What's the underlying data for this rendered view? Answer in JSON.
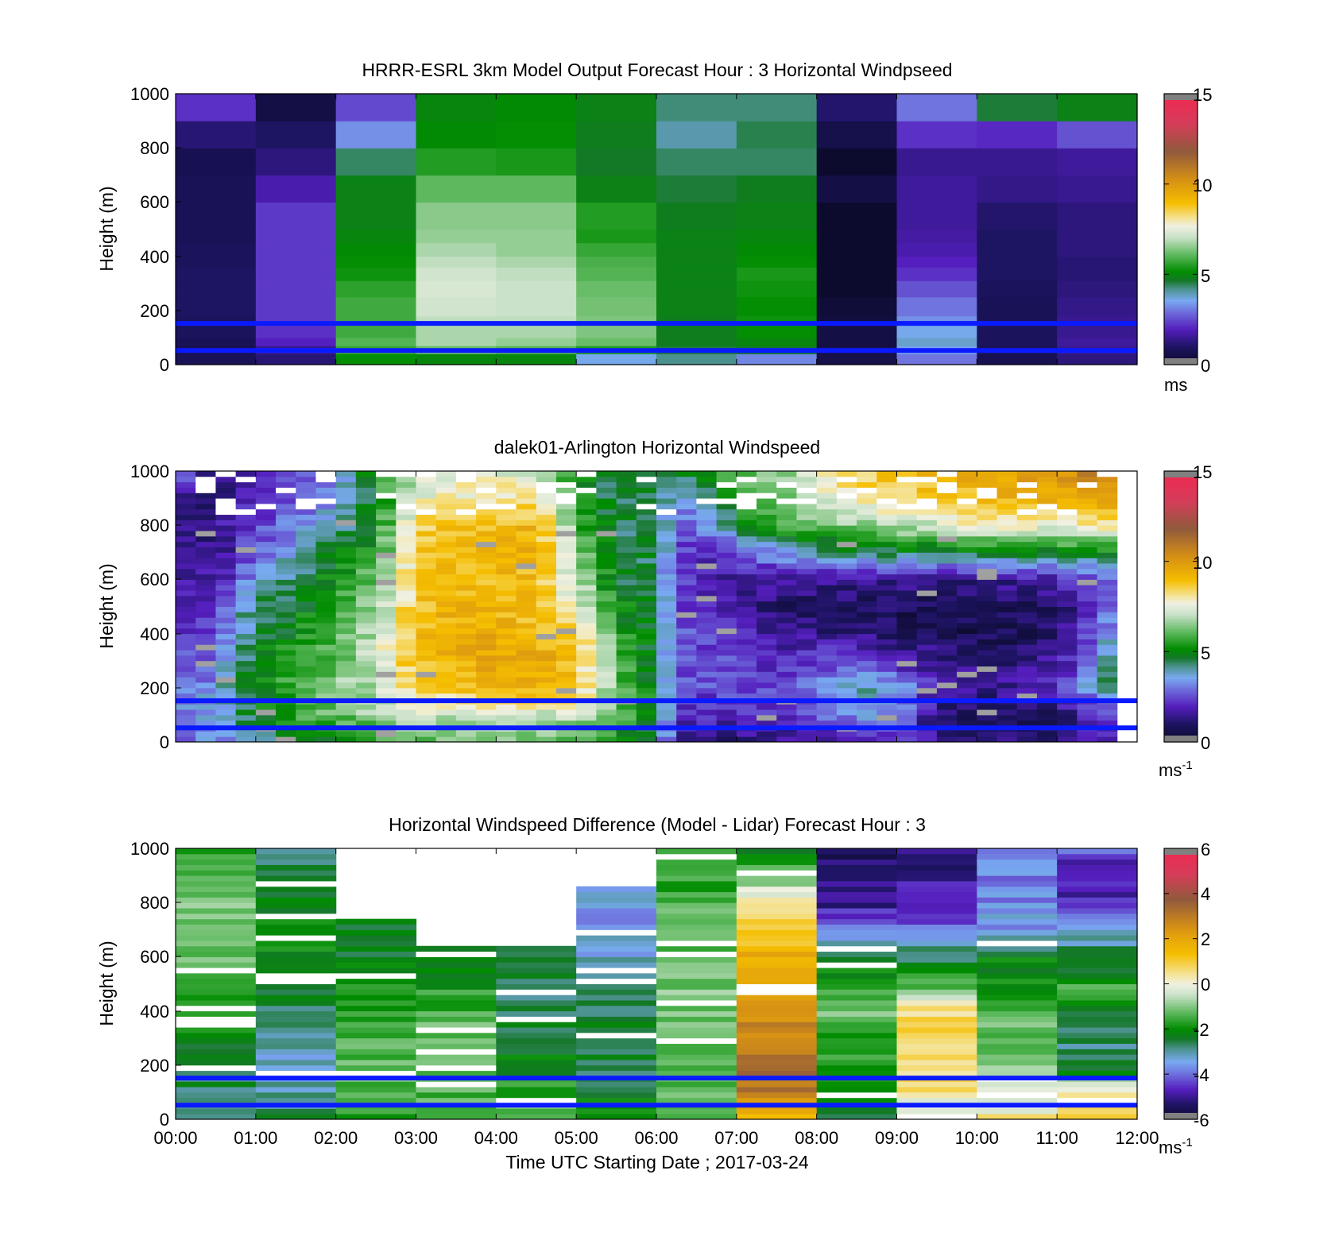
{
  "figure": {
    "xlabel": "Time UTC  Starting Date ; 2017-03-24",
    "xticks": [
      "00:00",
      "01:00",
      "02:00",
      "03:00",
      "04:00",
      "05:00",
      "06:00",
      "07:00",
      "08:00",
      "09:00",
      "10:00",
      "11:00",
      "12:00"
    ]
  },
  "chart_data": [
    {
      "type": "heatmap",
      "title": "HRRR-ESRL 3km Model Output   Forecast Hour : 3 Horizontal Windpseed",
      "ylabel": "Height (m)",
      "ylim": [
        0,
        1000
      ],
      "yticks": [
        "0",
        "200",
        "400",
        "600",
        "800",
        "1000"
      ],
      "xlim_hours": [
        0,
        12
      ],
      "colorbar": {
        "range": [
          0,
          15
        ],
        "ticks": [
          "0",
          "5",
          "10",
          "15"
        ],
        "unit": "ms",
        "unit_sup": ""
      },
      "reference_heights_m": [
        152,
        52
      ],
      "reference_line_color": "#0a1aff",
      "cell_hours": 1,
      "height_edges_m": [
        0,
        40,
        70,
        100,
        150,
        180,
        250,
        310,
        360,
        400,
        450,
        500,
        600,
        700,
        800,
        900,
        1000
      ],
      "values_by_hour": [
        [
          0.8,
          0.7,
          0.8,
          0.9,
          0.9,
          1.0,
          1.0,
          1.0,
          0.9,
          0.9,
          0.8,
          0.8,
          0.8,
          0.7,
          1.2,
          2.2
        ],
        [
          1.2,
          1.5,
          2.0,
          2.2,
          2.3,
          2.3,
          2.3,
          2.3,
          2.3,
          2.3,
          2.3,
          2.3,
          1.8,
          1.3,
          1.0,
          0.5
        ],
        [
          5.2,
          5.7,
          6.0,
          5.8,
          5.8,
          5.8,
          5.6,
          5.3,
          5.2,
          5.1,
          5.0,
          4.9,
          4.9,
          4.4,
          3.3,
          2.5
        ],
        [
          5.0,
          6.2,
          6.8,
          6.8,
          7.0,
          7.2,
          7.3,
          7.2,
          7.0,
          6.8,
          6.6,
          6.5,
          6.1,
          5.5,
          5.1,
          5.0
        ],
        [
          5.0,
          6.0,
          6.6,
          6.8,
          7.0,
          7.1,
          7.1,
          7.0,
          6.8,
          6.6,
          6.6,
          6.5,
          6.1,
          5.4,
          5.2,
          5.1
        ],
        [
          3.6,
          5.5,
          6.2,
          6.4,
          6.4,
          6.3,
          6.2,
          6.0,
          5.9,
          5.7,
          5.4,
          5.5,
          4.9,
          4.7,
          4.8,
          4.9
        ],
        [
          4.2,
          4.6,
          4.8,
          4.8,
          4.8,
          4.9,
          4.9,
          4.9,
          4.9,
          4.9,
          4.9,
          4.8,
          4.6,
          4.4,
          4.0,
          4.3
        ],
        [
          3.2,
          4.7,
          5.0,
          5.2,
          5.3,
          5.2,
          5.3,
          5.4,
          5.2,
          5.1,
          5.0,
          4.9,
          4.8,
          4.4,
          4.5,
          4.3
        ],
        [
          0.6,
          0.6,
          0.5,
          0.5,
          0.4,
          0.3,
          0.1,
          0.1,
          0.1,
          0.1,
          0.1,
          0.1,
          0.5,
          0.1,
          0.6,
          1.1
        ],
        [
          3.0,
          3.5,
          3.8,
          3.6,
          3.3,
          3.0,
          2.6,
          2.2,
          2.0,
          1.8,
          1.7,
          1.6,
          1.6,
          1.5,
          2.2,
          3.0
        ],
        [
          0.7,
          0.8,
          0.9,
          0.9,
          0.8,
          0.8,
          0.9,
          1.0,
          1.0,
          1.0,
          1.0,
          1.1,
          1.4,
          1.5,
          2.1,
          4.6
        ],
        [
          1.3,
          1.5,
          1.6,
          1.5,
          1.5,
          1.4,
          1.3,
          1.2,
          1.2,
          1.3,
          1.3,
          1.3,
          1.5,
          1.6,
          2.6,
          4.9
        ]
      ]
    },
    {
      "type": "heatmap",
      "title": "dalek01-Arlington  Horizontal Windspeed",
      "ylabel": "Height (m)",
      "ylim": [
        0,
        1000
      ],
      "yticks": [
        "0",
        "200",
        "400",
        "600",
        "800",
        "1000"
      ],
      "xlim_hours": [
        0,
        12
      ],
      "colorbar": {
        "range": [
          0,
          15
        ],
        "ticks": [
          "0",
          "5",
          "10",
          "15"
        ],
        "unit": "ms",
        "unit_sup": "-1"
      },
      "reference_heights_m": [
        152,
        52
      ],
      "reference_line_color": "#0a1aff",
      "data_extent_hours": [
        0,
        11.75
      ],
      "columns_per_hour": 4,
      "height_profile_m": [
        0,
        100,
        200,
        300,
        400,
        500,
        600,
        700,
        800,
        900,
        1000
      ],
      "anchor_hours": [
        0,
        0.5,
        1,
        1.5,
        2,
        2.5,
        3,
        3.5,
        4,
        4.5,
        5,
        5.5,
        6,
        6.25,
        6.5,
        7,
        7.5,
        8,
        8.5,
        9,
        9.5,
        10,
        10.5,
        11,
        11.75
      ],
      "anchor_profiles": [
        [
          3.0,
          3.2,
          2.8,
          2.4,
          2.0,
          1.8,
          1.5,
          1.5,
          1.4,
          1.2,
          4.0
        ],
        [
          3.2,
          3.6,
          3.4,
          3.0,
          2.6,
          2.0,
          1.6,
          1.5,
          1.4,
          1.3,
          1.0
        ],
        [
          3.8,
          5.0,
          5.0,
          4.8,
          4.5,
          4.6,
          3.5,
          2.6,
          2.4,
          2.0,
          1.8
        ],
        [
          4.5,
          5.6,
          5.8,
          5.6,
          5.2,
          4.8,
          4.5,
          3.8,
          3.0,
          2.8,
          2.5
        ],
        [
          5.0,
          6.2,
          6.5,
          6.2,
          6.0,
          5.8,
          5.2,
          4.8,
          4.0,
          3.2,
          2.8
        ],
        [
          5.4,
          6.6,
          7.0,
          7.2,
          7.0,
          6.8,
          6.4,
          5.5,
          5.0,
          5.0,
          6.0
        ],
        [
          6.0,
          7.2,
          8.5,
          9.0,
          9.0,
          8.8,
          8.6,
          8.8,
          8.5,
          7.5,
          7.0
        ],
        [
          6.0,
          7.2,
          8.7,
          9.3,
          9.4,
          9.3,
          9.0,
          9.2,
          8.8,
          7.8,
          7.5
        ],
        [
          6.2,
          7.4,
          9.2,
          9.6,
          9.4,
          9.2,
          9.0,
          9.2,
          9.0,
          8.0,
          7.6
        ],
        [
          6.0,
          7.2,
          9.4,
          9.6,
          9.2,
          8.8,
          9.0,
          9.5,
          9.2,
          8.0,
          7.0
        ],
        [
          5.8,
          7.0,
          8.8,
          9.0,
          8.6,
          7.8,
          7.0,
          6.5,
          6.0,
          5.5,
          5.0
        ],
        [
          5.2,
          6.0,
          6.5,
          6.0,
          5.6,
          5.2,
          4.8,
          4.6,
          4.5,
          4.4,
          4.6
        ],
        [
          4.5,
          4.8,
          4.8,
          4.6,
          4.5,
          4.4,
          4.4,
          4.5,
          4.5,
          4.6,
          4.8
        ],
        [
          1.5,
          2.2,
          2.5,
          2.7,
          2.8,
          2.6,
          2.4,
          2.6,
          3.0,
          3.5,
          4.5
        ],
        [
          1.2,
          2.0,
          2.5,
          2.6,
          2.5,
          2.2,
          2.0,
          2.0,
          2.8,
          3.5,
          5.0
        ],
        [
          1.3,
          2.0,
          2.6,
          2.5,
          2.2,
          1.7,
          1.6,
          2.4,
          4.6,
          5.5,
          6.0
        ],
        [
          1.3,
          2.0,
          2.4,
          2.1,
          1.4,
          1.0,
          1.6,
          3.6,
          5.8,
          6.2,
          6.5
        ],
        [
          1.5,
          2.5,
          3.0,
          2.5,
          1.4,
          1.0,
          1.4,
          4.0,
          6.2,
          7.2,
          7.6
        ],
        [
          2.0,
          3.6,
          4.0,
          2.5,
          1.3,
          0.9,
          1.6,
          4.5,
          6.6,
          8.0,
          8.5
        ],
        [
          2.0,
          3.2,
          3.5,
          2.0,
          1.0,
          0.8,
          1.6,
          4.6,
          7.0,
          8.4,
          9.0
        ],
        [
          1.5,
          1.0,
          2.0,
          1.5,
          0.8,
          0.6,
          1.5,
          4.6,
          7.2,
          8.8,
          9.2
        ],
        [
          1.0,
          0.8,
          1.5,
          1.2,
          0.7,
          0.6,
          1.5,
          4.6,
          7.6,
          9.0,
          9.6
        ],
        [
          1.2,
          0.9,
          1.6,
          1.3,
          0.8,
          0.8,
          1.6,
          4.8,
          7.8,
          9.3,
          10.0
        ],
        [
          1.3,
          1.0,
          2.0,
          1.6,
          1.0,
          1.2,
          1.8,
          4.8,
          7.8,
          9.4,
          10.3
        ],
        [
          2.0,
          2.6,
          4.6,
          4.6,
          3.8,
          3.0,
          2.8,
          5.0,
          8.4,
          9.5,
          11.0
        ]
      ]
    },
    {
      "type": "heatmap",
      "title": "Horizontal Windspeed Difference (Model - Lidar) Forecast Hour : 3",
      "ylabel": "Height (m)",
      "ylim": [
        0,
        1000
      ],
      "yticks": [
        "0",
        "200",
        "400",
        "600",
        "800",
        "1000"
      ],
      "xlim_hours": [
        0,
        12
      ],
      "colorbar": {
        "range": [
          -6,
          6
        ],
        "ticks": [
          "-6",
          "-4",
          "-2",
          "0",
          "2",
          "4",
          "6"
        ],
        "unit": "ms",
        "unit_sup": "-1"
      },
      "reference_heights_m": [
        152,
        52
      ],
      "reference_line_color": "#0a1aff",
      "cell_hours": 1,
      "height_profile_m": [
        0,
        100,
        200,
        300,
        400,
        500,
        600,
        700,
        800,
        900,
        1000
      ],
      "max_height_by_hour_m": [
        1000,
        1000,
        740,
        640,
        640,
        860,
        1000,
        1000,
        1000,
        1000,
        1000,
        1000
      ],
      "values_by_hour": [
        [
          -2.4,
          -2.6,
          -2.6,
          -2.2,
          -2.0,
          -1.5,
          -1.3,
          -1.2,
          -1.0,
          -1.4,
          -1.6
        ],
        [
          -2.6,
          -3.0,
          -3.2,
          -2.8,
          -2.6,
          -2.4,
          -2.2,
          -2.0,
          -2.2,
          -2.4,
          -2.6
        ],
        [
          -1.6,
          -1.2,
          -1.4,
          -1.5,
          -1.8,
          -2.0,
          -2.3,
          -2.2,
          -2.0,
          -2.0,
          -2.0
        ],
        [
          -1.6,
          -1.3,
          -1.3,
          -1.2,
          -1.4,
          -1.9,
          -2.6,
          -2.6,
          -2.6,
          -2.6,
          -2.6
        ],
        [
          -1.2,
          -1.6,
          -2.0,
          -2.6,
          -2.6,
          -2.6,
          -2.6,
          -2.6,
          -2.6,
          -2.6,
          -2.6
        ],
        [
          -2.0,
          -2.3,
          -2.6,
          -2.6,
          -2.5,
          -2.4,
          -3.2,
          -3.6,
          -3.6,
          -3.6,
          -3.6
        ],
        [
          -1.6,
          -1.4,
          -1.4,
          -1.2,
          -1.1,
          -1.0,
          -1.1,
          -1.3,
          -1.5,
          -1.6,
          -1.8
        ],
        [
          1.5,
          3.0,
          3.4,
          2.9,
          2.6,
          2.2,
          1.8,
          0.8,
          0.3,
          -1.2,
          -2.4
        ],
        [
          -2.5,
          -2.2,
          -1.9,
          -1.6,
          -1.1,
          -1.6,
          -2.6,
          -4.0,
          -5.0,
          -5.3,
          -5.6
        ],
        [
          -0.5,
          0.4,
          0.8,
          0.8,
          0.6,
          -1.4,
          -2.6,
          -4.0,
          -4.6,
          -5.0,
          -5.0
        ],
        [
          0.4,
          -0.4,
          -1.0,
          -1.2,
          -1.3,
          -1.8,
          -2.3,
          -3.5,
          -3.8,
          -3.8,
          -3.6
        ],
        [
          0.8,
          0.2,
          -2.6,
          -2.8,
          -2.2,
          -1.6,
          -2.6,
          -3.2,
          -4.6,
          -5.0,
          -4.2
        ]
      ]
    }
  ]
}
